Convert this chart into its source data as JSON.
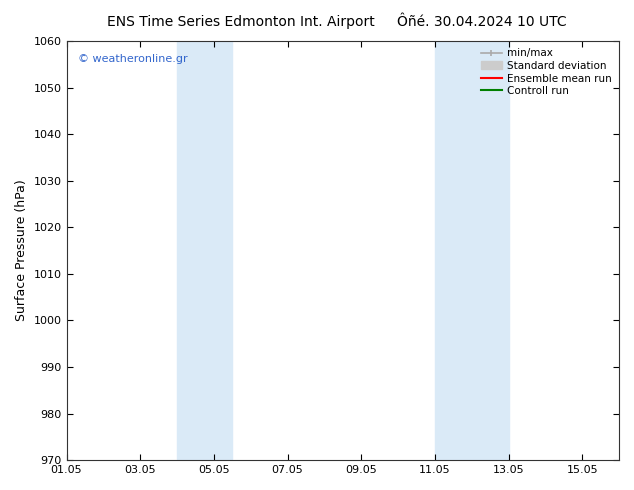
{
  "title_left": "ENS Time Series Edmonton Int. Airport",
  "title_right": "Ôñé. 30.04.2024 10 UTC",
  "ylabel": "Surface Pressure (hPa)",
  "ylim": [
    970,
    1060
  ],
  "yticks": [
    970,
    980,
    990,
    1000,
    1010,
    1020,
    1030,
    1040,
    1050,
    1060
  ],
  "xlim": [
    1,
    16
  ],
  "x_tick_days": [
    1,
    3,
    5,
    7,
    9,
    11,
    13,
    15
  ],
  "x_tick_labels": [
    "01.05",
    "03.05",
    "05.05",
    "07.05",
    "09.05",
    "11.05",
    "13.05",
    "15.05"
  ],
  "shaded_bands": [
    {
      "x_start": 4.0,
      "x_end": 5.5
    },
    {
      "x_start": 11.0,
      "x_end": 13.0
    }
  ],
  "band_color": "#daeaf7",
  "background_color": "#ffffff",
  "watermark_text": "© weatheronline.gr",
  "watermark_color": "#3366cc",
  "legend_labels": [
    "min/max",
    "Standard deviation",
    "Ensemble mean run",
    "Controll run"
  ],
  "legend_colors": [
    "#aaaaaa",
    "#cccccc",
    "#ff0000",
    "#008000"
  ],
  "title_fontsize": 10,
  "tick_fontsize": 8,
  "label_fontsize": 9,
  "watermark_fontsize": 8
}
